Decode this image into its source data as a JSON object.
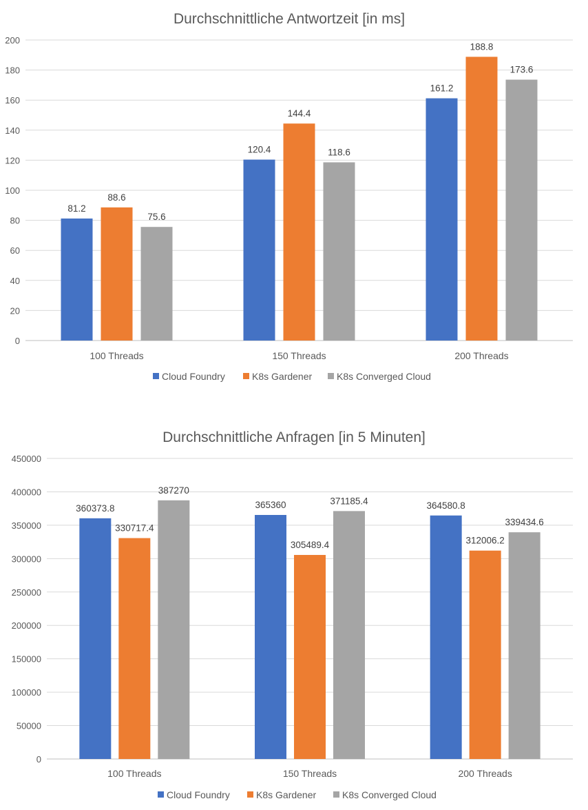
{
  "chart_data": [
    {
      "type": "bar",
      "title": "Durchschnittliche Antwortzeit [in ms]",
      "categories": [
        "100 Threads",
        "150 Threads",
        "200 Threads"
      ],
      "series": [
        {
          "name": "Cloud Foundry",
          "values": [
            81.2,
            120.4,
            161.2
          ],
          "color": "#4472c4",
          "labels": [
            "81.2",
            "120.4",
            "161.2"
          ]
        },
        {
          "name": "K8s Gardener",
          "values": [
            88.6,
            144.4,
            188.8
          ],
          "color": "#ed7d31",
          "labels": [
            "88.6",
            "144.4",
            "188.8"
          ]
        },
        {
          "name": "K8s Converged Cloud",
          "values": [
            75.6,
            118.6,
            173.6
          ],
          "color": "#a5a5a5",
          "labels": [
            "75.6",
            "118.6",
            "173.6"
          ]
        }
      ],
      "ylim": [
        0,
        200
      ],
      "yticks": [
        0,
        20,
        40,
        60,
        80,
        100,
        120,
        140,
        160,
        180,
        200
      ],
      "ytick_labels": [
        "0",
        "20",
        "40",
        "60",
        "80",
        "100",
        "120",
        "140",
        "160",
        "180",
        "200"
      ],
      "grid": true,
      "legend": "bottom"
    },
    {
      "type": "bar",
      "title": "Durchschnittliche Anfragen [in 5 Minuten]",
      "categories": [
        "100 Threads",
        "150 Threads",
        "200 Threads"
      ],
      "series": [
        {
          "name": "Cloud Foundry",
          "values": [
            360373.8,
            365360,
            364580.8
          ],
          "color": "#4472c4",
          "labels": [
            "360373.8",
            "365360",
            "364580.8"
          ]
        },
        {
          "name": "K8s Gardener",
          "values": [
            330717.4,
            305489.4,
            312006.2
          ],
          "color": "#ed7d31",
          "labels": [
            "330717.4",
            "305489.4",
            "312006.2"
          ]
        },
        {
          "name": "K8s Converged Cloud",
          "values": [
            387270,
            371185.4,
            339434.6
          ],
          "color": "#a5a5a5",
          "labels": [
            "387270",
            "371185.4",
            "339434.6"
          ]
        }
      ],
      "ylim": [
        0,
        450000
      ],
      "yticks": [
        0,
        50000,
        100000,
        150000,
        200000,
        250000,
        300000,
        350000,
        400000,
        450000
      ],
      "ytick_labels": [
        "0",
        "50000",
        "100000",
        "150000",
        "200000",
        "250000",
        "300000",
        "350000",
        "400000",
        "450000"
      ],
      "grid": true,
      "legend": "bottom"
    }
  ]
}
